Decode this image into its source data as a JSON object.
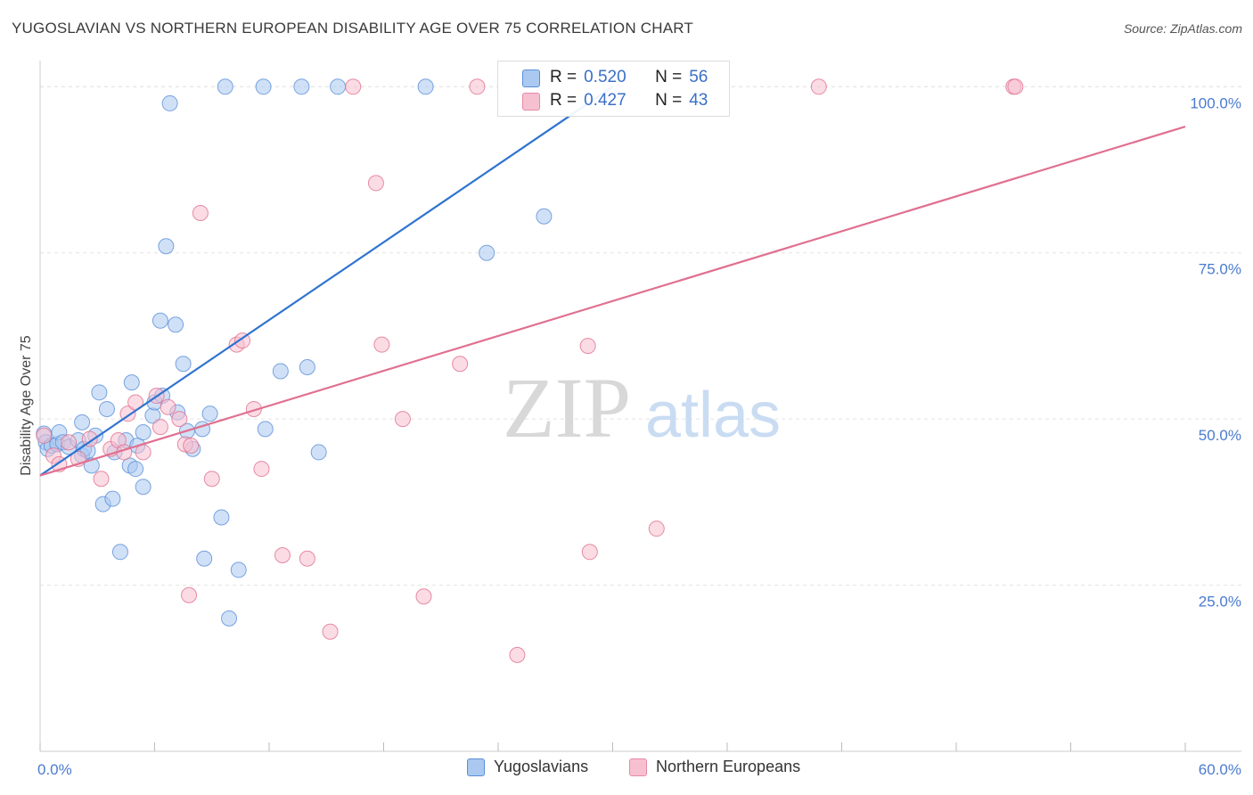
{
  "title": "YUGOSLAVIAN VS NORTHERN EUROPEAN DISABILITY AGE OVER 75 CORRELATION CHART",
  "source": "Source: ZipAtlas.com",
  "watermark": {
    "zip": "ZIP",
    "atlas": "atlas"
  },
  "legend_stats": {
    "r_label": "R =",
    "n_label": "N =",
    "rows": [
      {
        "r": "0.520",
        "n": "56",
        "fill": "#aac8f0",
        "stroke": "#5a8fd8"
      },
      {
        "r": "0.427",
        "n": "43",
        "fill": "#f7c0d0",
        "stroke": "#e58aa8"
      }
    ]
  },
  "chart_data": {
    "type": "scatter",
    "title": "YUGOSLAVIAN VS NORTHERN EUROPEAN DISABILITY AGE OVER 75 CORRELATION CHART",
    "xlabel": "",
    "ylabel": "Disability Age Over 75",
    "xlim": [
      0,
      60
    ],
    "ylim": [
      0,
      105
    ],
    "x_tick_labels": [
      "0.0%",
      "60.0%"
    ],
    "y_ticks": [
      25,
      50,
      75,
      100
    ],
    "y_tick_labels": [
      "25.0%",
      "50.0%",
      "75.0%",
      "100.0%"
    ],
    "legend": [
      "Yugoslavians",
      "Northern Europeans"
    ],
    "series": [
      {
        "name": "Yugoslavians",
        "color": "#5a8fd8",
        "fill": "#aac8f0",
        "trend": {
          "x0": 0,
          "y0": 41.5,
          "x1": 30,
          "y1": 100
        },
        "points": [
          [
            0.2,
            47.8
          ],
          [
            0.3,
            46.5
          ],
          [
            0.4,
            45.5
          ],
          [
            0.6,
            46.0
          ],
          [
            0.9,
            46.2
          ],
          [
            1.0,
            48.0
          ],
          [
            1.2,
            46.5
          ],
          [
            1.5,
            45.8
          ],
          [
            2.0,
            46.8
          ],
          [
            2.2,
            44.5
          ],
          [
            2.2,
            49.5
          ],
          [
            2.3,
            45.5
          ],
          [
            2.5,
            45.2
          ],
          [
            2.7,
            43.0
          ],
          [
            2.9,
            47.5
          ],
          [
            3.1,
            54.0
          ],
          [
            3.3,
            37.2
          ],
          [
            3.5,
            51.5
          ],
          [
            3.8,
            38.0
          ],
          [
            3.9,
            45.0
          ],
          [
            4.2,
            30.0
          ],
          [
            4.5,
            46.8
          ],
          [
            4.7,
            43.0
          ],
          [
            4.8,
            55.5
          ],
          [
            5.0,
            42.5
          ],
          [
            5.1,
            46.0
          ],
          [
            5.4,
            48.0
          ],
          [
            5.4,
            39.8
          ],
          [
            5.9,
            50.5
          ],
          [
            6.0,
            52.5
          ],
          [
            6.3,
            64.8
          ],
          [
            6.4,
            53.5
          ],
          [
            6.6,
            76.0
          ],
          [
            6.8,
            97.5
          ],
          [
            7.1,
            64.2
          ],
          [
            7.2,
            51.0
          ],
          [
            7.5,
            58.3
          ],
          [
            7.7,
            48.2
          ],
          [
            8.0,
            45.5
          ],
          [
            8.5,
            48.5
          ],
          [
            8.6,
            29.0
          ],
          [
            8.9,
            50.8
          ],
          [
            9.5,
            35.2
          ],
          [
            9.7,
            100
          ],
          [
            9.9,
            20.0
          ],
          [
            10.4,
            27.3
          ],
          [
            11.7,
            100
          ],
          [
            11.8,
            48.5
          ],
          [
            12.6,
            57.2
          ],
          [
            13.7,
            100
          ],
          [
            14.0,
            57.8
          ],
          [
            14.6,
            45.0
          ],
          [
            15.6,
            100
          ],
          [
            20.2,
            100
          ],
          [
            23.4,
            75.0
          ],
          [
            26.4,
            80.5
          ]
        ]
      },
      {
        "name": "Northern Europeans",
        "color": "#e07090",
        "fill": "#f7c0d0",
        "trend": {
          "x0": 0,
          "y0": 41.5,
          "x1": 60,
          "y1": 94
        },
        "points": [
          [
            0.2,
            47.5
          ],
          [
            0.7,
            44.5
          ],
          [
            1.0,
            43.2
          ],
          [
            1.5,
            46.5
          ],
          [
            2.0,
            44.0
          ],
          [
            2.6,
            47.0
          ],
          [
            3.2,
            41.0
          ],
          [
            3.7,
            45.5
          ],
          [
            4.1,
            46.8
          ],
          [
            4.4,
            45.0
          ],
          [
            4.6,
            50.8
          ],
          [
            5.0,
            52.5
          ],
          [
            5.4,
            45.0
          ],
          [
            6.1,
            53.5
          ],
          [
            6.3,
            48.8
          ],
          [
            6.7,
            51.8
          ],
          [
            7.3,
            50.0
          ],
          [
            7.6,
            46.2
          ],
          [
            7.9,
            46.0
          ],
          [
            7.8,
            23.5
          ],
          [
            8.4,
            81.0
          ],
          [
            9.0,
            41.0
          ],
          [
            10.3,
            61.2
          ],
          [
            10.6,
            61.8
          ],
          [
            11.2,
            51.5
          ],
          [
            11.6,
            42.5
          ],
          [
            12.7,
            29.5
          ],
          [
            14.0,
            29.0
          ],
          [
            15.2,
            18.0
          ],
          [
            16.4,
            100
          ],
          [
            17.6,
            85.5
          ],
          [
            17.9,
            61.2
          ],
          [
            19.0,
            50.0
          ],
          [
            20.1,
            23.3
          ],
          [
            22.0,
            58.3
          ],
          [
            22.9,
            100
          ],
          [
            25.0,
            14.5
          ],
          [
            28.7,
            61.0
          ],
          [
            28.8,
            30.0
          ],
          [
            32.3,
            33.5
          ],
          [
            40.8,
            100
          ],
          [
            51.0,
            100
          ],
          [
            51.1,
            100
          ]
        ]
      }
    ]
  }
}
